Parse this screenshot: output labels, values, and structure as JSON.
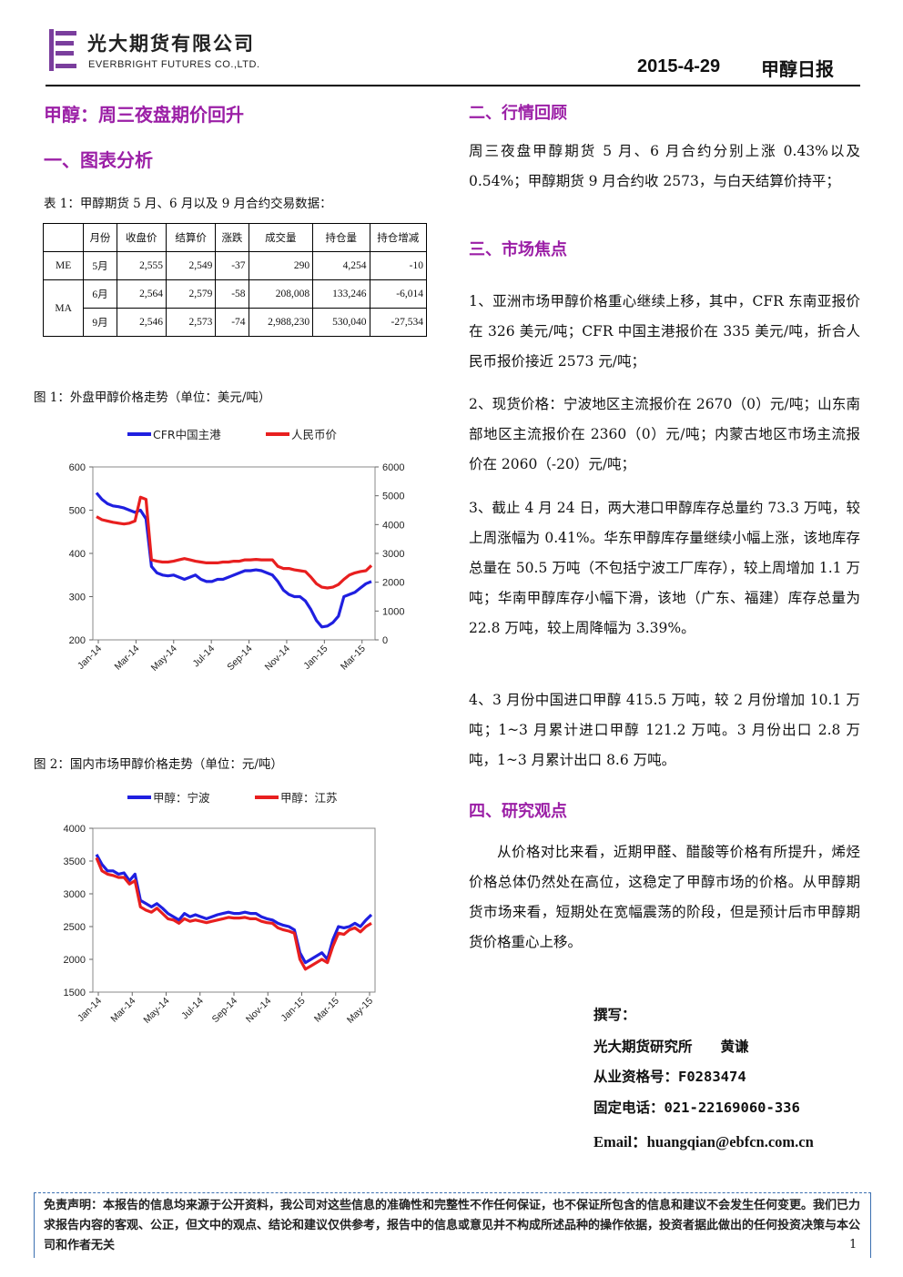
{
  "header": {
    "company_cn": "光大期货有限公司",
    "company_en": "EVERBRIGHT FUTURES CO.,LTD.",
    "date": "2015-4-29",
    "report_title": "甲醇日报"
  },
  "left": {
    "main_title": "甲醇：周三夜盘期价回升",
    "section1": "一、图表分析",
    "table_caption": "表 1：甲醇期货 5 月、6 月以及 9 月合约交易数据：",
    "table": {
      "headers": [
        "",
        "月份",
        "收盘价",
        "结算价",
        "涨跌",
        "成交量",
        "持仓量",
        "持仓增减"
      ],
      "rows": [
        {
          "group": "ME",
          "month": "5月",
          "close": "2,555",
          "settle": "2,549",
          "change": "-37",
          "volume": "290",
          "oi": "4,254",
          "oi_chg": "-10"
        },
        {
          "group": "MA",
          "month": "6月",
          "close": "2,564",
          "settle": "2,579",
          "change": "-58",
          "volume": "208,008",
          "oi": "133,246",
          "oi_chg": "-6,014"
        },
        {
          "group": "",
          "month": "9月",
          "close": "2,546",
          "settle": "2,573",
          "change": "-74",
          "volume": "2,988,230",
          "oi": "530,040",
          "oi_chg": "-27,534"
        }
      ]
    },
    "fig1_caption": "图 1：外盘甲醇价格走势（单位：美元/吨）",
    "fig2_caption": "图 2：国内市场甲醇价格走势（单位：元/吨）"
  },
  "chart_data": [
    {
      "type": "line",
      "title": "",
      "x_ticks": [
        "Jan-14",
        "Mar-14",
        "May-14",
        "Jul-14",
        "Sep-14",
        "Nov-14",
        "Jan-15",
        "Mar-15"
      ],
      "y_left": {
        "min": 200,
        "max": 600,
        "ticks": [
          200,
          300,
          400,
          500,
          600
        ]
      },
      "y_right": {
        "min": 0,
        "max": 6000,
        "ticks": [
          0,
          1000,
          2000,
          3000,
          4000,
          5000,
          6000
        ]
      },
      "legend_position": "top",
      "series": [
        {
          "name": "CFR中国主港",
          "axis": "left",
          "color": "#1f1fe0",
          "values": [
            540,
            525,
            515,
            510,
            508,
            505,
            500,
            495,
            500,
            480,
            370,
            355,
            350,
            348,
            350,
            345,
            340,
            345,
            350,
            340,
            335,
            335,
            340,
            340,
            345,
            350,
            355,
            360,
            360,
            362,
            360,
            355,
            350,
            335,
            315,
            305,
            300,
            300,
            290,
            270,
            245,
            230,
            232,
            240,
            255,
            300,
            305,
            310,
            320,
            330,
            335
          ]
        },
        {
          "name": "人民币价",
          "axis": "left",
          "color": "#e81f1f",
          "values": [
            485,
            478,
            475,
            472,
            470,
            468,
            470,
            475,
            530,
            525,
            385,
            382,
            380,
            380,
            382,
            385,
            388,
            385,
            382,
            380,
            378,
            378,
            378,
            380,
            380,
            382,
            382,
            385,
            385,
            386,
            385,
            385,
            385,
            370,
            365,
            365,
            362,
            360,
            358,
            345,
            330,
            322,
            320,
            322,
            328,
            340,
            350,
            355,
            358,
            360,
            372
          ]
        }
      ]
    },
    {
      "type": "line",
      "title": "",
      "x_ticks": [
        "Jan-14",
        "Mar-14",
        "May-14",
        "Jul-14",
        "Sep-14",
        "Nov-14",
        "Jan-15",
        "Mar-15",
        "May-15"
      ],
      "y": {
        "min": 1500,
        "max": 4000,
        "ticks": [
          1500,
          2000,
          2500,
          3000,
          3500,
          4000
        ]
      },
      "legend_position": "top",
      "series": [
        {
          "name": "甲醇：宁波",
          "color": "#1f1fe0",
          "values": [
            3600,
            3450,
            3350,
            3350,
            3300,
            3320,
            3200,
            3300,
            2900,
            2850,
            2800,
            2850,
            2780,
            2700,
            2650,
            2600,
            2700,
            2650,
            2680,
            2650,
            2620,
            2650,
            2680,
            2700,
            2720,
            2700,
            2700,
            2720,
            2700,
            2700,
            2650,
            2620,
            2600,
            2550,
            2520,
            2500,
            2450,
            2100,
            1950,
            2000,
            2050,
            2100,
            2000,
            2300,
            2500,
            2480,
            2500,
            2550,
            2500,
            2600,
            2680
          ]
        },
        {
          "name": "甲醇：江苏",
          "color": "#e81f1f",
          "values": [
            3550,
            3350,
            3300,
            3280,
            3250,
            3250,
            3150,
            3200,
            2800,
            2750,
            2720,
            2780,
            2700,
            2620,
            2600,
            2550,
            2620,
            2580,
            2600,
            2580,
            2560,
            2580,
            2600,
            2620,
            2640,
            2630,
            2630,
            2640,
            2620,
            2620,
            2580,
            2560,
            2550,
            2480,
            2450,
            2430,
            2400,
            2000,
            1850,
            1900,
            1950,
            2000,
            1950,
            2200,
            2400,
            2380,
            2450,
            2480,
            2420,
            2500,
            2550
          ]
        }
      ]
    }
  ],
  "right": {
    "section2": "二、行情回顾",
    "review": "周三夜盘甲醇期货 5 月、6 月合约分别上涨 0.43%以及 0.54%；甲醇期货 9 月合约收 2573，与白天结算价持平；",
    "section3": "三、市场焦点",
    "focus": [
      "1、亚洲市场甲醇价格重心继续上移，其中，CFR 东南亚报价在 326 美元/吨；CFR 中国主港报价在 335 美元/吨，折合人民币报价接近 2573 元/吨；",
      "2、现货价格：宁波地区主流报价在 2670（0）元/吨；山东南部地区主流报价在 2360（0）元/吨；内蒙古地区市场主流报价在 2060（-20）元/吨；",
      "3、截止 4 月 24 日，两大港口甲醇库存总量约 73.3 万吨，较上周涨幅为 0.41%。华东甲醇库存量继续小幅上涨，该地库存总量在 50.5 万吨（不包括宁波工厂库存），较上周增加 1.1 万吨；华南甲醇库存小幅下滑，该地（广东、福建）库存总量为 22.8 万吨，较上周降幅为 3.39%。",
      "4、3 月份中国进口甲醇 415.5 万吨，较 2 月份增加 10.1 万吨；1~3 月累计进口甲醇 121.2 万吨。3 月份出口 2.8 万吨，1~3 月累计出口 8.6 万吨。"
    ],
    "section4": "四、研究观点",
    "view": "从价格对比来看，近期甲醛、醋酸等价格有所提升，烯烃价格总体仍然处在高位，这稳定了甲醇市场的价格。从甲醇期货市场来看，短期处在宽幅震荡的阶段，但是预计后市甲醇期货价格重心上移。",
    "author": {
      "label": "撰写：",
      "org_name": "光大期货研究所　　黄谦",
      "license": "从业资格号：F0283474",
      "phone": "固定电话：021-22169060-336",
      "email": "Email：huangqian@ebfcn.com.cn"
    }
  },
  "footer": {
    "disclaimer": "免责声明：本报告的信息均来源于公开资料，我公司对这些信息的准确性和完整性不作任何保证，也不保证所包含的信息和建议不会发生任何变更。我们已力求报告内容的客观、公正，但文中的观点、结论和建议仅供参考，报告中的信息或意见并不构成所述品种的操作依据，投资者据此做出的任何投资决策与本公司和作者无关",
    "page": "1"
  }
}
